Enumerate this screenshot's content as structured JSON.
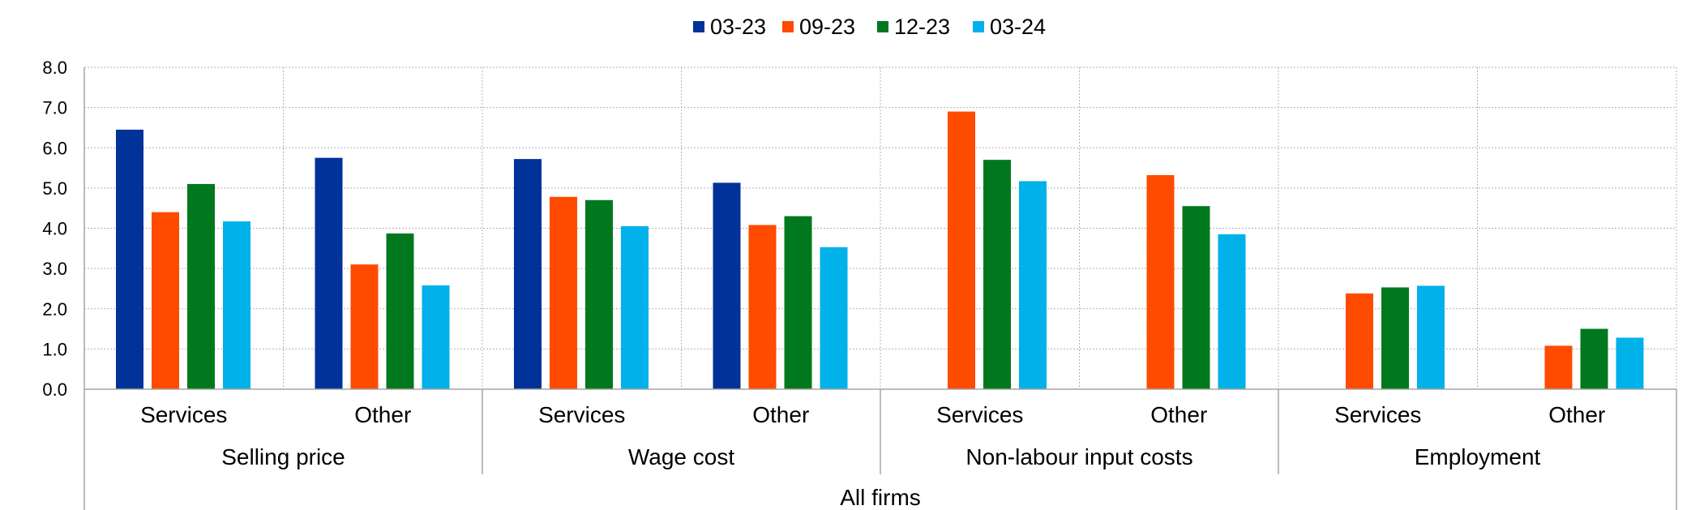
{
  "chart_data": {
    "type": "bar",
    "title": "",
    "xlabel": "",
    "ylabel": "",
    "ylim": [
      0,
      8
    ],
    "yticks": [
      "0.0",
      "1.0",
      "2.0",
      "3.0",
      "4.0",
      "5.0",
      "6.0",
      "7.0",
      "8.0"
    ],
    "grid": true,
    "legend_position": "top-center",
    "top_group": "All firms",
    "groups": [
      "Selling price",
      "Wage cost",
      "Non-labour input costs",
      "Employment"
    ],
    "categories": [
      "Services",
      "Other",
      "Services",
      "Other",
      "Services",
      "Other",
      "Services",
      "Other"
    ],
    "series": [
      {
        "name": "03-23",
        "color": "#003299",
        "values": [
          6.45,
          5.75,
          5.72,
          5.13,
          null,
          null,
          null,
          null
        ]
      },
      {
        "name": "09-23",
        "color": "#FF4B00",
        "values": [
          4.4,
          3.1,
          4.78,
          4.08,
          6.9,
          5.32,
          2.38,
          1.08
        ]
      },
      {
        "name": "12-23",
        "color": "#00781E",
        "values": [
          5.1,
          3.87,
          4.7,
          4.3,
          5.7,
          4.55,
          2.53,
          1.5
        ]
      },
      {
        "name": "03-24",
        "color": "#00B1EA",
        "values": [
          4.17,
          2.58,
          4.05,
          3.53,
          5.17,
          3.85,
          2.57,
          1.28
        ]
      }
    ]
  }
}
